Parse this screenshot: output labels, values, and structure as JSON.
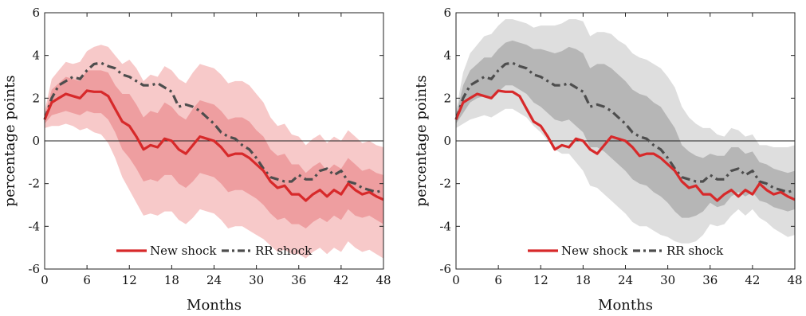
{
  "chart_data": [
    {
      "type": "line",
      "title": "",
      "xlabel": "Months",
      "ylabel": "percentage points",
      "xlim": [
        0,
        48
      ],
      "ylim": [
        -6,
        6
      ],
      "xticks": [
        0,
        6,
        12,
        18,
        24,
        30,
        36,
        42,
        48
      ],
      "yticks": [
        6,
        4,
        2,
        0,
        -2,
        -4,
        -6
      ],
      "x_tick_labels": [
        "0",
        "6",
        "12",
        "18",
        "24",
        "30",
        "36",
        "42",
        "48"
      ],
      "y_tick_labels": [
        "6",
        "4",
        "2",
        "0",
        "-2",
        "-4",
        "-6"
      ],
      "grid": false,
      "zero_line": true,
      "legend_position": "bottom-center",
      "band_colors": {
        "outer": "#f7c9c9",
        "inner": "#ee9ea0"
      },
      "series": [
        {
          "name": "New shock",
          "style": "solid",
          "color": "#d7292a",
          "values": [
            1.0,
            1.8,
            2.0,
            2.2,
            2.1,
            2.0,
            2.35,
            2.3,
            2.3,
            2.1,
            1.5,
            0.9,
            0.7,
            0.2,
            -0.4,
            -0.2,
            -0.3,
            0.1,
            0.0,
            -0.4,
            -0.6,
            -0.2,
            0.2,
            0.1,
            0.0,
            -0.3,
            -0.7,
            -0.6,
            -0.6,
            -0.8,
            -1.1,
            -1.4,
            -1.9,
            -2.2,
            -2.1,
            -2.5,
            -2.5,
            -2.8,
            -2.5,
            -2.3,
            -2.6,
            -2.3,
            -2.5,
            -2.0,
            -2.3,
            -2.5,
            -2.4,
            -2.6,
            -2.75
          ]
        },
        {
          "name": "RR shock",
          "style": "dash-dot",
          "color": "#4d4d4d",
          "values": [
            1.0,
            2.0,
            2.6,
            2.8,
            3.0,
            2.9,
            3.3,
            3.6,
            3.65,
            3.5,
            3.4,
            3.1,
            3.0,
            2.8,
            2.6,
            2.6,
            2.7,
            2.5,
            2.3,
            1.6,
            1.7,
            1.6,
            1.4,
            1.1,
            0.8,
            0.4,
            0.2,
            0.1,
            -0.2,
            -0.4,
            -0.8,
            -1.3,
            -1.7,
            -1.8,
            -1.9,
            -1.9,
            -1.6,
            -1.8,
            -1.8,
            -1.4,
            -1.3,
            -1.6,
            -1.4,
            -1.9,
            -2.0,
            -2.2,
            -2.3,
            -2.4,
            -2.3
          ]
        }
      ],
      "bands": {
        "inner_lower": [
          0.8,
          1.2,
          1.3,
          1.4,
          1.3,
          1.2,
          1.4,
          1.3,
          1.3,
          1.0,
          0.4,
          -0.4,
          -0.8,
          -1.3,
          -1.9,
          -1.8,
          -1.9,
          -1.6,
          -1.6,
          -2.0,
          -2.2,
          -1.9,
          -1.5,
          -1.6,
          -1.7,
          -2.0,
          -2.4,
          -2.3,
          -2.3,
          -2.5,
          -2.7,
          -3.0,
          -3.4,
          -3.7,
          -3.6,
          -3.9,
          -3.9,
          -4.1,
          -3.8,
          -3.6,
          -3.8,
          -3.5,
          -3.7,
          -3.2,
          -3.5,
          -3.6,
          -3.5,
          -3.7,
          -3.9
        ],
        "inner_upper": [
          1.2,
          2.4,
          2.7,
          3.0,
          2.9,
          2.8,
          3.3,
          3.3,
          3.3,
          3.2,
          2.6,
          2.2,
          2.2,
          1.7,
          1.1,
          1.4,
          1.3,
          1.8,
          1.6,
          1.2,
          1.0,
          1.5,
          1.9,
          1.8,
          1.7,
          1.4,
          1.0,
          1.1,
          1.1,
          0.9,
          0.5,
          0.2,
          -0.4,
          -0.7,
          -0.6,
          -1.1,
          -1.1,
          -1.5,
          -1.2,
          -1.0,
          -1.4,
          -1.1,
          -1.3,
          -0.8,
          -1.1,
          -1.4,
          -1.3,
          -1.5,
          -1.6
        ],
        "outer_lower": [
          0.6,
          0.7,
          0.7,
          0.8,
          0.7,
          0.5,
          0.6,
          0.4,
          0.3,
          -0.1,
          -0.8,
          -1.7,
          -2.3,
          -2.9,
          -3.5,
          -3.4,
          -3.5,
          -3.3,
          -3.3,
          -3.7,
          -3.9,
          -3.6,
          -3.2,
          -3.3,
          -3.4,
          -3.7,
          -4.1,
          -4.0,
          -4.0,
          -4.2,
          -4.4,
          -4.6,
          -4.9,
          -5.2,
          -5.1,
          -5.3,
          -5.3,
          -5.5,
          -5.2,
          -5.0,
          -5.3,
          -5.0,
          -5.2,
          -4.7,
          -5.0,
          -5.2,
          -5.1,
          -5.3,
          -5.5
        ],
        "outer_upper": [
          1.4,
          2.9,
          3.3,
          3.7,
          3.6,
          3.7,
          4.2,
          4.4,
          4.5,
          4.4,
          4.0,
          3.6,
          3.8,
          3.4,
          2.8,
          3.1,
          3.0,
          3.5,
          3.3,
          2.9,
          2.7,
          3.2,
          3.6,
          3.5,
          3.4,
          3.1,
          2.7,
          2.8,
          2.8,
          2.6,
          2.2,
          1.8,
          1.1,
          0.7,
          0.8,
          0.3,
          0.2,
          -0.2,
          0.1,
          0.3,
          -0.1,
          0.2,
          0.0,
          0.5,
          0.2,
          -0.1,
          0.0,
          -0.2,
          -0.3
        ]
      }
    },
    {
      "type": "line",
      "title": "",
      "xlabel": "Months",
      "ylabel": "percentage points",
      "xlim": [
        0,
        48
      ],
      "ylim": [
        -6,
        6
      ],
      "xticks": [
        0,
        6,
        12,
        18,
        24,
        30,
        36,
        42,
        48
      ],
      "yticks": [
        6,
        4,
        2,
        0,
        -2,
        -4,
        -6
      ],
      "x_tick_labels": [
        "0",
        "6",
        "12",
        "18",
        "24",
        "30",
        "36",
        "42",
        "48"
      ],
      "y_tick_labels": [
        "6",
        "4",
        "2",
        "0",
        "-2",
        "-4",
        "-6"
      ],
      "grid": false,
      "zero_line": true,
      "legend_position": "bottom-center",
      "band_colors": {
        "outer": "#dedede",
        "inner": "#b6b6b6"
      },
      "series": [
        {
          "name": "New shock",
          "style": "solid",
          "color": "#d7292a",
          "values": [
            1.0,
            1.8,
            2.0,
            2.2,
            2.1,
            2.0,
            2.35,
            2.3,
            2.3,
            2.1,
            1.5,
            0.9,
            0.7,
            0.2,
            -0.4,
            -0.2,
            -0.3,
            0.1,
            0.0,
            -0.4,
            -0.6,
            -0.2,
            0.2,
            0.1,
            0.0,
            -0.3,
            -0.7,
            -0.6,
            -0.6,
            -0.8,
            -1.1,
            -1.4,
            -1.9,
            -2.2,
            -2.1,
            -2.5,
            -2.5,
            -2.8,
            -2.5,
            -2.3,
            -2.6,
            -2.3,
            -2.5,
            -2.0,
            -2.3,
            -2.5,
            -2.4,
            -2.6,
            -2.75
          ]
        },
        {
          "name": "RR shock",
          "style": "dash-dot",
          "color": "#4d4d4d",
          "values": [
            1.0,
            2.0,
            2.6,
            2.8,
            3.0,
            2.9,
            3.3,
            3.6,
            3.65,
            3.5,
            3.4,
            3.1,
            3.0,
            2.8,
            2.6,
            2.6,
            2.7,
            2.5,
            2.3,
            1.6,
            1.7,
            1.6,
            1.4,
            1.1,
            0.8,
            0.4,
            0.2,
            0.1,
            -0.2,
            -0.4,
            -0.8,
            -1.3,
            -1.7,
            -1.8,
            -1.9,
            -1.9,
            -1.6,
            -1.8,
            -1.8,
            -1.4,
            -1.3,
            -1.6,
            -1.4,
            -1.9,
            -2.0,
            -2.2,
            -2.3,
            -2.4,
            -2.3
          ]
        }
      ],
      "bands": {
        "inner_lower": [
          0.8,
          1.3,
          1.8,
          2.0,
          2.1,
          2.0,
          2.3,
          2.6,
          2.6,
          2.4,
          2.2,
          1.8,
          1.6,
          1.3,
          1.0,
          0.9,
          1.0,
          0.7,
          0.4,
          -0.3,
          -0.3,
          -0.5,
          -0.8,
          -1.1,
          -1.4,
          -1.8,
          -2.0,
          -2.1,
          -2.4,
          -2.6,
          -2.9,
          -3.3,
          -3.6,
          -3.6,
          -3.5,
          -3.3,
          -2.9,
          -3.1,
          -3.0,
          -2.6,
          -2.4,
          -2.6,
          -2.4,
          -2.8,
          -2.9,
          -3.1,
          -3.2,
          -3.3,
          -3.2
        ],
        "inner_upper": [
          1.2,
          2.6,
          3.3,
          3.6,
          3.9,
          3.9,
          4.3,
          4.6,
          4.7,
          4.6,
          4.5,
          4.3,
          4.3,
          4.2,
          4.1,
          4.2,
          4.4,
          4.3,
          4.1,
          3.4,
          3.6,
          3.6,
          3.4,
          3.1,
          2.8,
          2.4,
          2.2,
          2.1,
          1.8,
          1.6,
          1.1,
          0.6,
          -0.2,
          -0.5,
          -0.7,
          -0.8,
          -0.6,
          -0.7,
          -0.7,
          -0.3,
          -0.3,
          -0.6,
          -0.5,
          -1.0,
          -1.1,
          -1.3,
          -1.4,
          -1.5,
          -1.4
        ],
        "outer_lower": [
          0.6,
          0.8,
          1.0,
          1.1,
          1.2,
          1.1,
          1.3,
          1.5,
          1.5,
          1.3,
          1.1,
          0.7,
          0.4,
          0.0,
          -0.4,
          -0.6,
          -0.6,
          -1.0,
          -1.4,
          -2.1,
          -2.2,
          -2.5,
          -2.8,
          -3.1,
          -3.4,
          -3.8,
          -4.0,
          -4.0,
          -4.2,
          -4.4,
          -4.5,
          -4.7,
          -4.8,
          -4.8,
          -4.7,
          -4.4,
          -3.9,
          -4.0,
          -3.9,
          -3.5,
          -3.2,
          -3.5,
          -3.2,
          -3.6,
          -3.8,
          -4.1,
          -4.3,
          -4.5,
          -4.4
        ],
        "outer_upper": [
          1.4,
          3.2,
          4.1,
          4.5,
          4.9,
          5.0,
          5.4,
          5.7,
          5.7,
          5.6,
          5.5,
          5.3,
          5.4,
          5.4,
          5.4,
          5.5,
          5.7,
          5.7,
          5.6,
          4.9,
          5.1,
          5.1,
          5.0,
          4.7,
          4.5,
          4.1,
          3.9,
          3.8,
          3.6,
          3.4,
          3.0,
          2.5,
          1.6,
          1.1,
          0.8,
          0.6,
          0.6,
          0.3,
          0.2,
          0.6,
          0.5,
          0.2,
          0.3,
          -0.2,
          -0.2,
          -0.3,
          -0.3,
          -0.3,
          -0.2
        ]
      }
    }
  ]
}
